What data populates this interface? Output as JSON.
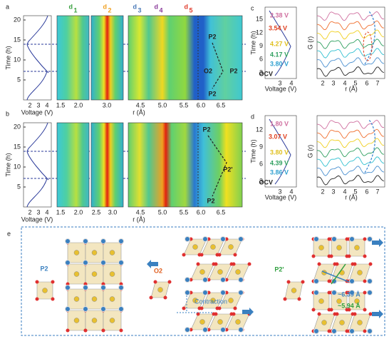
{
  "panel_a": {
    "label": "a",
    "time_axis": "Time (h)",
    "time_ticks": [
      "5",
      "10",
      "15",
      "20"
    ],
    "voltage_axis": "Voltage (V)",
    "voltage_ticks": [
      "2",
      "3",
      "4"
    ],
    "peaks": [
      {
        "letter": "d",
        "index": "1"
      },
      {
        "letter": "d",
        "index": "2"
      },
      {
        "letter": "d",
        "index": "3"
      },
      {
        "letter": "d",
        "index": "4"
      },
      {
        "letter": "d",
        "index": "5"
      }
    ],
    "r_ticks": [
      "1.5",
      "2.0",
      "3.0",
      "4.5",
      "5.0",
      "5.5",
      "6.0",
      "6.5"
    ],
    "r_axis": "r (Å)",
    "annotations": [
      "P2",
      "O2",
      "P2",
      "P2"
    ]
  },
  "panel_b": {
    "label": "b",
    "time_axis": "Time (h)",
    "time_ticks": [
      "5",
      "10",
      "15",
      "20"
    ],
    "voltage_axis": "Voltage (V)",
    "voltage_ticks": [
      "2",
      "3",
      "4"
    ],
    "r_ticks": [
      "1.5",
      "2.0",
      "2.5",
      "3.0",
      "4.5",
      "5.0",
      "5.5",
      "6.0",
      "6.5"
    ],
    "r_axis": "r (Å)",
    "annotations": [
      "P2",
      "P2'",
      "P2"
    ]
  },
  "panel_c": {
    "label": "c",
    "time_axis": "Time (h)",
    "time_ticks": [
      "3",
      "6",
      "9",
      "12",
      "15"
    ],
    "voltage_axis": "Voltage (V)",
    "voltage_ticks": [
      "3",
      "4"
    ],
    "states": [
      "2.38 V",
      "3.54 V",
      "4.27 V",
      "4.17 V",
      "3.80 V",
      "OCV"
    ],
    "g_axis": "G (r)",
    "r_axis": "r (Å)",
    "r_ticks": [
      "2",
      "3",
      "4",
      "5",
      "6",
      "7"
    ]
  },
  "panel_d": {
    "label": "d",
    "time_axis": "Time (h)",
    "time_ticks": [
      "3",
      "6",
      "9",
      "12"
    ],
    "voltage_axis": "Voltage (V)",
    "voltage_ticks": [
      "3",
      "4"
    ],
    "states": [
      "1.80 V",
      "3.07 V",
      "3.80 V",
      "4.39 V",
      "3.86 V",
      "OCV"
    ],
    "g_axis": "G (r)",
    "r_axis": "r (Å)",
    "r_ticks": [
      "2",
      "3",
      "4",
      "5",
      "6",
      "7"
    ]
  },
  "panel_e": {
    "label": "e",
    "phases": [
      "P2",
      "O2",
      "P2'"
    ],
    "contraction": "Contraction",
    "distances": [
      "~6.39 Å",
      "~5.94 Å"
    ]
  }
}
